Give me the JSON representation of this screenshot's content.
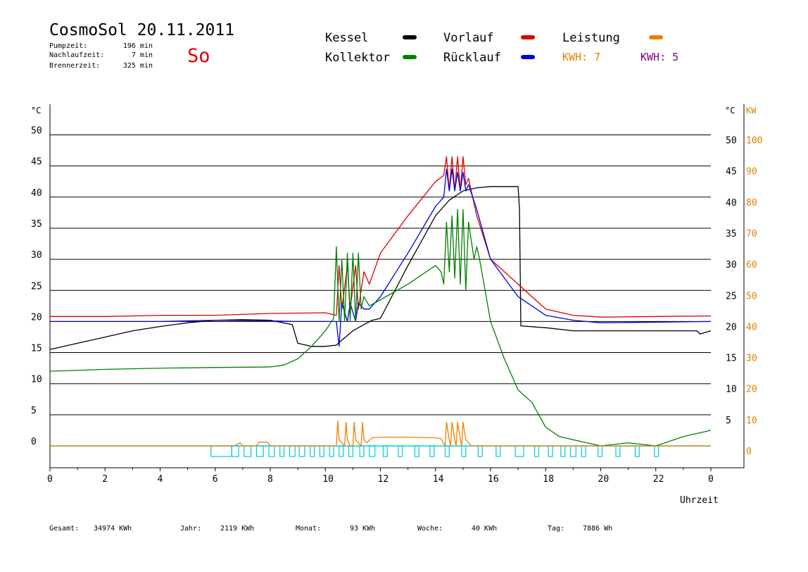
{
  "header": {
    "title": "CosmoSol 20.11.2011",
    "day": "So",
    "stats": [
      {
        "label": "Pumpzeit:",
        "value": "196 min"
      },
      {
        "label": "Nachlaufzeit:",
        "value": "7 min"
      },
      {
        "label": "Brennerzeit:",
        "value": "325 min"
      }
    ]
  },
  "legend": [
    {
      "name": "Kessel",
      "color": "#000000"
    },
    {
      "name": "Vorlauf",
      "color": "#e00000"
    },
    {
      "name": "Leistung",
      "color": "#f08000"
    },
    {
      "name": "Kollektor",
      "color": "#008000"
    },
    {
      "name": "Rücklauf",
      "color": "#0000e0"
    }
  ],
  "kwh": [
    {
      "text": "KWH: 7",
      "color": "#e08000"
    },
    {
      "text": "KWH: 5",
      "color": "#800080"
    }
  ],
  "footer": {
    "gesamt_label": "Gesamt:",
    "gesamt": "34974 KWh",
    "jahr_label": "Jahr:",
    "jahr": "2119 KWh",
    "monat_label": "Monat:",
    "monat": "93 KWh",
    "woche_label": "Woche:",
    "woche": "40 KWh",
    "tag_label": "Tag:",
    "tag": "7886 Wh"
  },
  "chart_data": {
    "type": "line",
    "xlabel": "Uhrzeit",
    "ylabel_left": "°C",
    "ylabel_right": [
      "°C",
      "KW"
    ],
    "x_ticks": [
      "0",
      "2",
      "4",
      "6",
      "8",
      "10",
      "12",
      "14",
      "16",
      "18",
      "20",
      "22",
      "0"
    ],
    "xlim": [
      0,
      24
    ],
    "ylim": [
      -3.5,
      50
    ],
    "y_ticks_left": [
      0,
      5,
      10,
      15,
      20,
      25,
      30,
      35,
      40,
      45,
      50
    ],
    "y_ticks_right": [
      5,
      10,
      15,
      20,
      25,
      30,
      35,
      40,
      45,
      50
    ],
    "y_ticks_kw": [
      0,
      10,
      20,
      30,
      40,
      50,
      60,
      70,
      80,
      90,
      100
    ],
    "series": [
      {
        "name": "Kessel",
        "color": "#000000",
        "x": [
          0,
          1,
          2,
          3,
          4,
          5,
          6,
          7,
          8,
          8.8,
          9,
          9.5,
          10,
          10.4,
          10.6,
          11,
          11.4,
          11.7,
          12,
          13,
          14,
          14.5,
          15,
          15.5,
          16,
          17,
          17.05,
          17.1,
          18,
          19,
          20,
          22,
          23.5,
          23.6,
          24
        ],
        "y": [
          15.5,
          16.5,
          17.5,
          18.5,
          19.2,
          19.8,
          20.2,
          20.3,
          20.2,
          19.5,
          16.5,
          16,
          16,
          16.2,
          17,
          18.5,
          19.5,
          20.2,
          20.5,
          29,
          37,
          39.5,
          41,
          41.5,
          41.7,
          41.7,
          38,
          19.3,
          19,
          18.5,
          18.5,
          18.5,
          18.5,
          18,
          18.5
        ]
      },
      {
        "name": "Vorlauf",
        "color": "#e00000",
        "x": [
          0,
          2,
          4,
          6,
          8,
          10,
          10.4,
          10.5,
          10.6,
          10.8,
          10.9,
          11.1,
          11.2,
          11.4,
          11.6,
          12,
          13,
          14,
          14.3,
          14.4,
          14.5,
          14.6,
          14.7,
          14.8,
          14.9,
          15,
          15.1,
          15.2,
          15.5,
          16,
          17,
          17.5,
          18,
          19,
          20,
          22,
          24
        ],
        "y": [
          20.8,
          20.8,
          21,
          21,
          21.3,
          21.4,
          21,
          29,
          22,
          29,
          22,
          29,
          22,
          28,
          26,
          31,
          37,
          42.5,
          43.5,
          46.5,
          41,
          46.5,
          41,
          46.5,
          41,
          46.5,
          42,
          43,
          37,
          30,
          26,
          24,
          22,
          21,
          20.7,
          20.8,
          20.9
        ]
      },
      {
        "name": "Rücklauf",
        "color": "#0000e0",
        "x": [
          0,
          2,
          4,
          6,
          8,
          9,
          10,
          10.4,
          10.5,
          10.6,
          10.8,
          10.9,
          11.1,
          11.2,
          11.4,
          11.6,
          12,
          13,
          14,
          14.3,
          14.4,
          14.5,
          14.6,
          14.7,
          14.8,
          14.9,
          15,
          15.1,
          15.2,
          15.5,
          16,
          17,
          17.5,
          18,
          19,
          20,
          22,
          24
        ],
        "y": [
          20,
          20,
          20,
          20.2,
          20.1,
          20,
          20,
          20,
          16,
          23,
          20,
          23,
          20,
          23,
          22,
          22,
          24,
          31,
          38.5,
          40,
          44.5,
          41,
          44.5,
          41,
          44,
          41,
          44,
          41,
          42,
          38,
          30,
          24,
          22.5,
          21,
          20.2,
          19.8,
          19.9,
          20
        ]
      },
      {
        "name": "Kollektor",
        "color": "#008000",
        "x": [
          0,
          2,
          4,
          6,
          8,
          8.5,
          9,
          9.5,
          10,
          10.3,
          10.4,
          10.5,
          10.6,
          10.7,
          10.8,
          10.9,
          11,
          11.1,
          11.2,
          11.3,
          11.4,
          11.6,
          12,
          13,
          13.5,
          14,
          14.2,
          14.3,
          14.4,
          14.5,
          14.6,
          14.7,
          14.8,
          14.9,
          15,
          15.1,
          15.2,
          15.4,
          15.5,
          15.6,
          16,
          16.5,
          17,
          17.5,
          18,
          18.5,
          19,
          20,
          21,
          22,
          23,
          24
        ],
        "y": [
          12,
          12.3,
          12.5,
          12.6,
          12.7,
          13,
          14,
          16,
          18.5,
          20.5,
          32,
          20,
          30,
          20,
          31,
          20,
          31,
          20,
          31,
          22,
          24,
          22.5,
          23.5,
          26,
          27.5,
          29,
          28,
          26,
          36,
          28,
          37,
          27,
          38,
          26,
          38,
          25,
          36,
          30,
          32,
          30,
          20,
          14,
          9,
          7,
          3,
          1.5,
          1,
          0,
          0.5,
          0,
          1.5,
          2.5
        ]
      },
      {
        "name": "Leistung",
        "color": "#f08000",
        "x": [
          0,
          6.6,
          6.7,
          6.9,
          7.0,
          7.5,
          7.6,
          7.9,
          8.0,
          10.4,
          10.45,
          10.5,
          10.6,
          10.7,
          10.75,
          10.8,
          10.9,
          11.0,
          11.05,
          11.1,
          11.2,
          11.3,
          11.35,
          11.4,
          11.5,
          11.7,
          12,
          13,
          14,
          14.2,
          14.35,
          14.4,
          14.5,
          14.55,
          14.6,
          14.7,
          14.75,
          14.8,
          14.9,
          14.95,
          15.0,
          15.1,
          15.2,
          15.3,
          24
        ],
        "y": [
          0,
          0,
          0,
          0.5,
          0,
          0,
          0.6,
          0.6,
          0,
          0,
          4,
          1,
          0.5,
          0,
          3.8,
          1,
          0,
          0,
          3.8,
          1,
          0.5,
          0,
          3.8,
          1,
          0.5,
          1.3,
          1.4,
          1.4,
          1.3,
          1.2,
          0,
          3.8,
          1,
          0,
          3.8,
          1,
          0,
          3.8,
          1,
          0,
          3.8,
          1,
          0.5,
          0,
          0
        ]
      }
    ],
    "pump_segments": [
      [
        5.85,
        6.6
      ],
      [
        6.6,
        6.85
      ],
      [
        7.05,
        7.3
      ],
      [
        7.5,
        7.75
      ],
      [
        7.95,
        8.15
      ],
      [
        8.35,
        8.5
      ],
      [
        8.7,
        8.9
      ],
      [
        9.05,
        9.25
      ],
      [
        9.45,
        9.6
      ],
      [
        9.8,
        9.95
      ],
      [
        10.15,
        10.3
      ],
      [
        10.5,
        10.65
      ],
      [
        10.85,
        11.0
      ],
      [
        11.25,
        11.4
      ],
      [
        11.6,
        11.8
      ],
      [
        12.1,
        12.25
      ],
      [
        12.65,
        12.8
      ],
      [
        13.25,
        13.4
      ],
      [
        13.8,
        13.95
      ],
      [
        14.35,
        14.5
      ],
      [
        14.95,
        15.1
      ],
      [
        15.55,
        15.7
      ],
      [
        16.2,
        16.35
      ],
      [
        16.9,
        17.2
      ],
      [
        17.6,
        17.75
      ],
      [
        18.1,
        18.25
      ],
      [
        18.55,
        18.7
      ],
      [
        18.9,
        19.1
      ],
      [
        19.3,
        19.45
      ],
      [
        19.9,
        20.05
      ],
      [
        20.55,
        20.7
      ],
      [
        21.25,
        21.4
      ],
      [
        21.95,
        22.1
      ]
    ]
  }
}
